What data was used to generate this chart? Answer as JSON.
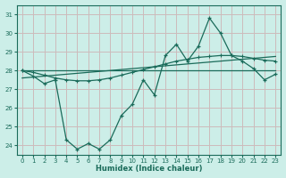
{
  "xlabel": "Humidex (Indice chaleur)",
  "bg_color": "#cceee8",
  "grid_color": "#ccbbbb",
  "line_color": "#1a6b5a",
  "xlim": [
    -0.5,
    23.5
  ],
  "ylim": [
    23.5,
    31.5
  ],
  "yticks": [
    24,
    25,
    26,
    27,
    28,
    29,
    30,
    31
  ],
  "xticks": [
    0,
    1,
    2,
    3,
    4,
    5,
    6,
    7,
    8,
    9,
    10,
    11,
    12,
    13,
    14,
    15,
    16,
    17,
    18,
    19,
    20,
    21,
    22,
    23
  ],
  "main_y": [
    28.0,
    27.7,
    27.3,
    27.5,
    24.3,
    23.8,
    24.1,
    23.8,
    24.3,
    25.6,
    26.2,
    27.5,
    26.7,
    28.8,
    29.4,
    28.5,
    29.3,
    30.8,
    30.0,
    28.8,
    28.5,
    28.1,
    27.5,
    27.8
  ],
  "flat_y": [
    28.0,
    28.0,
    28.0,
    28.0,
    28.0,
    28.0,
    28.0,
    28.0,
    28.0,
    28.0,
    28.0,
    28.0,
    28.0,
    28.0,
    28.0,
    28.0,
    28.0,
    28.0,
    28.0,
    28.0,
    28.0,
    28.0,
    28.0,
    28.0
  ],
  "trend_y": [
    27.6,
    27.65,
    27.7,
    27.75,
    27.8,
    27.85,
    27.9,
    27.95,
    28.0,
    28.05,
    28.1,
    28.15,
    28.2,
    28.25,
    28.3,
    28.35,
    28.4,
    28.45,
    28.5,
    28.55,
    28.6,
    28.65,
    28.7,
    28.75
  ],
  "smooth_y": [
    28.0,
    27.9,
    27.75,
    27.6,
    27.5,
    27.45,
    27.45,
    27.5,
    27.6,
    27.75,
    27.9,
    28.05,
    28.2,
    28.35,
    28.5,
    28.6,
    28.7,
    28.75,
    28.8,
    28.8,
    28.75,
    28.65,
    28.55,
    28.5
  ]
}
